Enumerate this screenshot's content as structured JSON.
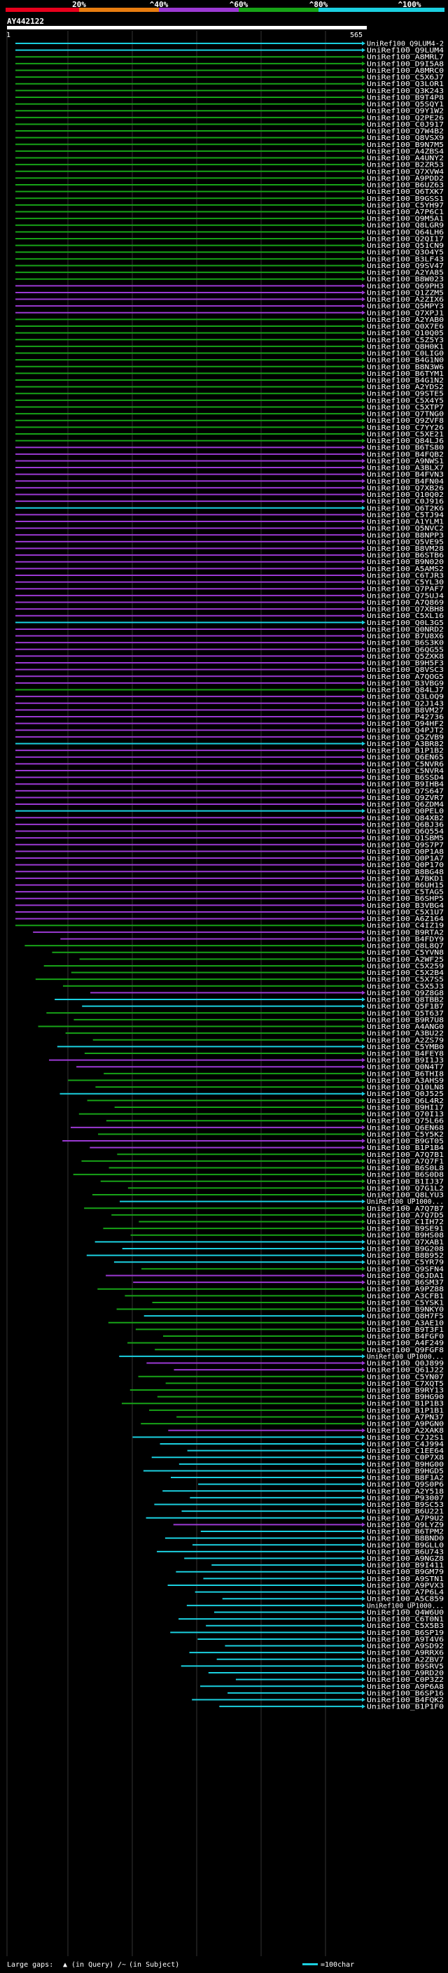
{
  "query_id": "AY442122",
  "ruler": {
    "start": "1",
    "end": "565"
  },
  "color_scale": {
    "labels": [
      "20%",
      "^40%",
      "^60%",
      "^80%",
      "^100%"
    ],
    "colors": [
      "#e8001c",
      "#e87d10",
      "#9b39d3",
      "#17a317",
      "#1bd0e0"
    ]
  },
  "footer": {
    "large_gaps": "Large gaps:",
    "in_query_mark": "▲",
    "in_query": "(in Query)",
    "in_subject_mark": "/~",
    "in_subject": "(in Subject)",
    "scale_text": "=100char"
  },
  "hits": [
    {
      "id": "UniRef100_Q9LUM4-2",
      "color": "#1bd0e0"
    },
    {
      "id": "UniRef100_Q9LUM4",
      "color": "#1bd0e0"
    },
    {
      "id": "UniRef100_A8MRL7",
      "color": "#17a317"
    },
    {
      "id": "UniRef100_D9I5A8",
      "color": "#17a317"
    },
    {
      "id": "UniRef100_A8MRC0",
      "color": "#17a317"
    },
    {
      "id": "UniRef100_C5X6J7",
      "color": "#17a317"
    },
    {
      "id": "UniRef100_Q3LOR1",
      "color": "#17a317"
    },
    {
      "id": "UniRef100_Q3K243",
      "color": "#17a317"
    },
    {
      "id": "UniRef100_B9T4P8",
      "color": "#17a317"
    },
    {
      "id": "UniRef100_Q5SQY1",
      "color": "#17a317"
    },
    {
      "id": "UniRef100_Q9Y1W2",
      "color": "#17a317"
    },
    {
      "id": "UniRef100_Q2PE26",
      "color": "#17a317"
    },
    {
      "id": "UniRef100_C0J917",
      "color": "#17a317"
    },
    {
      "id": "UniRef100_Q7W4B2",
      "color": "#17a317"
    },
    {
      "id": "UniRef100_Q8VSX9",
      "color": "#17a317"
    },
    {
      "id": "UniRef100_B9N7M5",
      "color": "#17a317"
    },
    {
      "id": "UniRef100_A4ZBS4",
      "color": "#17a317"
    },
    {
      "id": "UniRef100_A4UNY2",
      "color": "#17a317"
    },
    {
      "id": "UniRef100_B2ZR53",
      "color": "#17a317"
    },
    {
      "id": "UniRef100_Q7XVW4",
      "color": "#17a317"
    },
    {
      "id": "UniRef100_A9PDD2",
      "color": "#17a317"
    },
    {
      "id": "UniRef100_B6UZ63",
      "color": "#17a317"
    },
    {
      "id": "UniRef100_Q6TXK7",
      "color": "#17a317"
    },
    {
      "id": "UniRef100_B9GSS1",
      "color": "#17a317"
    },
    {
      "id": "UniRef100_C5YH97",
      "color": "#17a317"
    },
    {
      "id": "UniRef100_A7P6C1",
      "color": "#17a317"
    },
    {
      "id": "UniRef100_Q9M5A1",
      "color": "#17a317"
    },
    {
      "id": "UniRef100_Q8LGR9",
      "color": "#17a317"
    },
    {
      "id": "UniRef100_Q64LH6",
      "color": "#17a317"
    },
    {
      "id": "UniRef100_Q2QI17",
      "color": "#17a317"
    },
    {
      "id": "UniRef100_Q51CN9",
      "color": "#17a317"
    },
    {
      "id": "UniRef100_Q3O4Y5",
      "color": "#17a317"
    },
    {
      "id": "UniRef100_B3LF43",
      "color": "#17a317"
    },
    {
      "id": "UniRef100_Q9SV47",
      "color": "#17a317"
    },
    {
      "id": "UniRef100_A2YA85",
      "color": "#17a317"
    },
    {
      "id": "UniRef100_B8W023",
      "color": "#17a317"
    },
    {
      "id": "UniRef100_Q69PH3",
      "color": "#9b39d3"
    },
    {
      "id": "UniRef100_Q1ZZM5",
      "color": "#9b39d3"
    },
    {
      "id": "UniRef100_A2ZIX6",
      "color": "#9b39d3"
    },
    {
      "id": "UniRef100_Q5MPY3",
      "color": "#9b39d3"
    },
    {
      "id": "UniRef100_Q7XPJ1",
      "color": "#9b39d3"
    },
    {
      "id": "UniRef100_A2YAB0",
      "color": "#17a317"
    },
    {
      "id": "UniRef100_Q0X7E6",
      "color": "#17a317"
    },
    {
      "id": "UniRef100_Q10Q05",
      "color": "#17a317"
    },
    {
      "id": "UniRef100_C5Z5Y3",
      "color": "#17a317"
    },
    {
      "id": "UniRef100_Q8H0K1",
      "color": "#17a317"
    },
    {
      "id": "UniRef100_C0LIG0",
      "color": "#17a317"
    },
    {
      "id": "UniRef100_B4G1N0",
      "color": "#17a317"
    },
    {
      "id": "UniRef100_B8N3W6",
      "color": "#17a317"
    },
    {
      "id": "UniRef100_B6TYM1",
      "color": "#17a317"
    },
    {
      "id": "UniRef100_B4G1N2",
      "color": "#17a317"
    },
    {
      "id": "UniRef100_A2YDS2",
      "color": "#17a317"
    },
    {
      "id": "UniRef100_Q9STE5",
      "color": "#17a317"
    },
    {
      "id": "UniRef100_C5X4Y5",
      "color": "#17a317"
    },
    {
      "id": "UniRef100_C5XTP7",
      "color": "#17a317"
    },
    {
      "id": "UniRef100_Q7TNG0",
      "color": "#17a317"
    },
    {
      "id": "UniRef100_Q9ZVF8",
      "color": "#17a317"
    },
    {
      "id": "UniRef100_C7YY26",
      "color": "#17a317"
    },
    {
      "id": "UniRef100_C5XE21",
      "color": "#17a317"
    },
    {
      "id": "UniRef100_Q84LJ6",
      "color": "#17a317"
    },
    {
      "id": "UniRef100_B6TS80",
      "color": "#9b39d3"
    },
    {
      "id": "UniRef100_B4FQB2",
      "color": "#9b39d3"
    },
    {
      "id": "UniRef100_A9NWS1",
      "color": "#9b39d3"
    },
    {
      "id": "UniRef100_A3BLX7",
      "color": "#9b39d3"
    },
    {
      "id": "UniRef100_B4FVN3",
      "color": "#9b39d3"
    },
    {
      "id": "UniRef100_B4FN04",
      "color": "#9b39d3"
    },
    {
      "id": "UniRef100_Q7XB26",
      "color": "#9b39d3"
    },
    {
      "id": "UniRef100_Q10Q02",
      "color": "#9b39d3"
    },
    {
      "id": "UniRef100_C0J916",
      "color": "#9b39d3"
    },
    {
      "id": "UniRef100_Q6T2K6",
      "color": "#1bd0e0"
    },
    {
      "id": "UniRef100_C5TJ94",
      "color": "#9b39d3"
    },
    {
      "id": "UniRef100_A1YLM1",
      "color": "#9b39d3"
    },
    {
      "id": "UniRef100_Q5NVC2",
      "color": "#9b39d3"
    },
    {
      "id": "UniRef100_B8NPP3",
      "color": "#9b39d3"
    },
    {
      "id": "UniRef100_Q5VE95",
      "color": "#9b39d3"
    },
    {
      "id": "UniRef100_B8VM28",
      "color": "#9b39d3"
    },
    {
      "id": "UniRef100_B6STB6",
      "color": "#9b39d3"
    },
    {
      "id": "UniRef100_B9N020",
      "color": "#9b39d3"
    },
    {
      "id": "UniRef100_A5AMS2",
      "color": "#9b39d3"
    },
    {
      "id": "UniRef100_C6TJR3",
      "color": "#9b39d3"
    },
    {
      "id": "UniRef100_C5YL30",
      "color": "#9b39d3"
    },
    {
      "id": "UniRef100_Q7PAF7",
      "color": "#9b39d3"
    },
    {
      "id": "UniRef100_Q75UJ4",
      "color": "#9b39d3"
    },
    {
      "id": "UniRef100_A7Q869",
      "color": "#9b39d3"
    },
    {
      "id": "UniRef100_Q7XBH8",
      "color": "#9b39d3"
    },
    {
      "id": "UniRef100_C5XL16",
      "color": "#9b39d3"
    },
    {
      "id": "UniRef100_Q0L3G5",
      "color": "#1bd0e0"
    },
    {
      "id": "UniRef100_Q0NRD2",
      "color": "#9b39d3"
    },
    {
      "id": "UniRef100_B7U8X6",
      "color": "#9b39d3"
    },
    {
      "id": "UniRef100_B6S3K0",
      "color": "#9b39d3"
    },
    {
      "id": "UniRef100_Q6QG55",
      "color": "#9b39d3"
    },
    {
      "id": "UniRef100_Q5ZXK8",
      "color": "#9b39d3"
    },
    {
      "id": "UniRef100_B9H5F3",
      "color": "#9b39d3"
    },
    {
      "id": "UniRef100_Q8VSC3",
      "color": "#9b39d3"
    },
    {
      "id": "UniRef100_A7QOG5",
      "color": "#9b39d3"
    },
    {
      "id": "UniRef100_B3VBG9",
      "color": "#9b39d3"
    },
    {
      "id": "UniRef100_Q84LJ7",
      "color": "#17a317"
    },
    {
      "id": "UniRef100_Q3LOQ9",
      "color": "#9b39d3"
    },
    {
      "id": "UniRef100_Q2J143",
      "color": "#9b39d3"
    },
    {
      "id": "UniRef100_B8VM27",
      "color": "#9b39d3"
    },
    {
      "id": "UniRef100_P42736",
      "color": "#9b39d3"
    },
    {
      "id": "UniRef100_Q94HF2",
      "color": "#9b39d3"
    },
    {
      "id": "UniRef100_Q4PJT2",
      "color": "#9b39d3"
    },
    {
      "id": "UniRef100_Q5ZVB9",
      "color": "#9b39d3"
    },
    {
      "id": "UniRef100_A3BR82",
      "color": "#1bd0e0"
    },
    {
      "id": "UniRef100_B1P1B2",
      "color": "#9b39d3"
    },
    {
      "id": "UniRef100_Q6EN65",
      "color": "#9b39d3"
    },
    {
      "id": "UniRef100_C5NVR6",
      "color": "#9b39d3"
    },
    {
      "id": "UniRef100_C5NVR4",
      "color": "#9b39d3"
    },
    {
      "id": "UniRef100_B6SSD4",
      "color": "#9b39d3"
    },
    {
      "id": "UniRef100_B9IHB4",
      "color": "#9b39d3"
    },
    {
      "id": "UniRef100_Q7S647",
      "color": "#9b39d3"
    },
    {
      "id": "UniRef100_Q9ZVR7",
      "color": "#9b39d3"
    },
    {
      "id": "UniRef100_Q6ZDM4",
      "color": "#9b39d3"
    },
    {
      "id": "UniRef100_Q0PEL0",
      "color": "#1bd0e0"
    },
    {
      "id": "UniRef100_Q84XB2",
      "color": "#9b39d3"
    },
    {
      "id": "UniRef100_Q6BJ36",
      "color": "#9b39d3"
    },
    {
      "id": "UniRef100_Q6Q554",
      "color": "#9b39d3"
    },
    {
      "id": "UniRef100_Q1SBM5",
      "color": "#9b39d3"
    },
    {
      "id": "UniRef100_Q9S7P7",
      "color": "#9b39d3"
    },
    {
      "id": "UniRef100_Q0P1A8",
      "color": "#9b39d3"
    },
    {
      "id": "UniRef100_Q0P1A7",
      "color": "#9b39d3"
    },
    {
      "id": "UniRef100_Q0P170",
      "color": "#9b39d3"
    },
    {
      "id": "UniRef100_B8BG48",
      "color": "#9b39d3"
    },
    {
      "id": "UniRef100_A7BKD1",
      "color": "#9b39d3"
    },
    {
      "id": "UniRef100_B6UH15",
      "color": "#9b39d3"
    },
    {
      "id": "UniRef100_C5TAG5",
      "color": "#9b39d3"
    },
    {
      "id": "UniRef100_B6SHP5",
      "color": "#9b39d3"
    },
    {
      "id": "UniRef100_B3VBG4",
      "color": "#9b39d3"
    },
    {
      "id": "UniRef100_C5X1U7",
      "color": "#9b39d3"
    },
    {
      "id": "UniRef100_A6Z164",
      "color": "#9b39d3"
    },
    {
      "id": "UniRef100_C4IZ19",
      "color": "#17a317"
    },
    {
      "id": "UniRef100_B9RTA2",
      "color": "#9b39d3"
    },
    {
      "id": "UniRef100_B4FDY9",
      "color": "#9b39d3"
    },
    {
      "id": "UniRef100_Q8L8Q7",
      "color": "#17a317"
    },
    {
      "id": "UniRef100_C5YVN8",
      "color": "#17a317"
    },
    {
      "id": "UniRef100_A2WF25",
      "color": "#17a317"
    },
    {
      "id": "UniRef100_C5X259",
      "color": "#17a317"
    },
    {
      "id": "UniRef100_C5X2B4",
      "color": "#17a317"
    },
    {
      "id": "UniRef100_C5X7S5",
      "color": "#17a317"
    },
    {
      "id": "UniRef100_C5X5J3",
      "color": "#17a317"
    },
    {
      "id": "UniRef100_Q9Z8G8",
      "color": "#9b39d3"
    },
    {
      "id": "UniRef100_Q8TBB2",
      "color": "#1bd0e0"
    },
    {
      "id": "UniRef100_Q5F1B7",
      "color": "#1bd0e0"
    },
    {
      "id": "UniRef100_Q5T637",
      "color": "#17a317"
    },
    {
      "id": "UniRef100_B9R7U8",
      "color": "#17a317"
    },
    {
      "id": "UniRef100_A4ANG0",
      "color": "#17a317"
    },
    {
      "id": "UniRef100_A3BU22",
      "color": "#17a317"
    },
    {
      "id": "UniRef100_A2ZS79",
      "color": "#17a317"
    },
    {
      "id": "UniRef100_C5YMB0",
      "color": "#1bd0e0"
    },
    {
      "id": "UniRef100_B4FEY8",
      "color": "#17a317"
    },
    {
      "id": "UniRef100_B9I1J3",
      "color": "#9b39d3"
    },
    {
      "id": "UniRef100_Q0N4T7",
      "color": "#9b39d3"
    },
    {
      "id": "UniRef100_B6THI8",
      "color": "#17a317"
    },
    {
      "id": "UniRef100_A3AHS9",
      "color": "#17a317"
    },
    {
      "id": "UniRef100_Q10LN8",
      "color": "#17a317"
    },
    {
      "id": "UniRef100_Q0J525",
      "color": "#1bd0e0"
    },
    {
      "id": "UniRef100_Q6L4R2",
      "color": "#17a317"
    },
    {
      "id": "UniRef100_B9HI17",
      "color": "#17a317"
    },
    {
      "id": "UniRef100_Q70I13",
      "color": "#17a317"
    },
    {
      "id": "UniRef100_Q75L66",
      "color": "#17a317"
    },
    {
      "id": "UniRef100_Q6EN68",
      "color": "#9b39d3"
    },
    {
      "id": "UniRef100_C5Y5K2",
      "color": "#17a317"
    },
    {
      "id": "UniRef100_B9GT05",
      "color": "#9b39d3"
    },
    {
      "id": "UniRef100_B1P1B4",
      "color": "#9b39d3"
    },
    {
      "id": "UniRef100_A7Q7B1",
      "color": "#17a317"
    },
    {
      "id": "UniRef100_A7Q7F1",
      "color": "#17a317"
    },
    {
      "id": "UniRef100_B6S0L8",
      "color": "#17a317"
    },
    {
      "id": "UniRef100_B6S0D8",
      "color": "#17a317"
    },
    {
      "id": "UniRef100_B1IJ37",
      "color": "#17a317"
    },
    {
      "id": "UniRef100_Q7G1L2",
      "color": "#17a317"
    },
    {
      "id": "UniRef100_Q8LYU3",
      "color": "#17a317"
    },
    {
      "id": "UniRef100_UP1000...",
      "color": "#1bd0e0"
    },
    {
      "id": "UniRef100_A7Q7B7",
      "color": "#17a317"
    },
    {
      "id": "UniRef100_A7Q7D5",
      "color": "#17a317"
    },
    {
      "id": "UniRef100_C1IH72",
      "color": "#17a317"
    },
    {
      "id": "UniRef100_B9SE91",
      "color": "#17a317"
    },
    {
      "id": "UniRef100_B9HS08",
      "color": "#17a317"
    },
    {
      "id": "UniRef100_Q7XAB1",
      "color": "#1bd0e0"
    },
    {
      "id": "UniRef100_B9G208",
      "color": "#1bd0e0"
    },
    {
      "id": "UniRef100_B8B952",
      "color": "#1bd0e0"
    },
    {
      "id": "UniRef100_C5YR79",
      "color": "#1bd0e0"
    },
    {
      "id": "UniRef100_Q9SFN4",
      "color": "#17a317"
    },
    {
      "id": "UniRef100_Q6JDA1",
      "color": "#9b39d3"
    },
    {
      "id": "UniRef100_B6SM37",
      "color": "#9b39d3"
    },
    {
      "id": "UniRef100_A9PZ88",
      "color": "#17a317"
    },
    {
      "id": "UniRef100_A3CFB1",
      "color": "#17a317"
    },
    {
      "id": "UniRef100_C5YSK1",
      "color": "#17a317"
    },
    {
      "id": "UniRef100_B9NKY0",
      "color": "#17a317"
    },
    {
      "id": "UniRef100_Q8H7F5",
      "color": "#1bd0e0"
    },
    {
      "id": "UniRef100_A3AE10",
      "color": "#17a317"
    },
    {
      "id": "UniRef100_B9T3F1",
      "color": "#17a317"
    },
    {
      "id": "UniRef100_B4FGF0",
      "color": "#17a317"
    },
    {
      "id": "UniRef100_A4F249",
      "color": "#17a317"
    },
    {
      "id": "UniRef100_Q9FGF8",
      "color": "#17a317"
    },
    {
      "id": "UniRef100_UP1000...",
      "color": "#1bd0e0"
    },
    {
      "id": "UniRef100_Q0J899",
      "color": "#9b39d3"
    },
    {
      "id": "UniRef100_Q61J22",
      "color": "#9b39d3"
    },
    {
      "id": "UniRef100_C5YN07",
      "color": "#17a317"
    },
    {
      "id": "UniRef100_C7XQT5",
      "color": "#17a317"
    },
    {
      "id": "UniRef100_B9RY13",
      "color": "#17a317"
    },
    {
      "id": "UniRef100_B9HG90",
      "color": "#17a317"
    },
    {
      "id": "UniRef100_B1P1B3",
      "color": "#17a317"
    },
    {
      "id": "UniRef100_B1P1B1",
      "color": "#17a317"
    },
    {
      "id": "UniRef100_A7PN37",
      "color": "#17a317"
    },
    {
      "id": "UniRef100_A9PGN0",
      "color": "#17a317"
    },
    {
      "id": "UniRef100_A2XAK8",
      "color": "#9b39d3"
    },
    {
      "id": "UniRef100_C7J2S1",
      "color": "#1bd0e0"
    },
    {
      "id": "UniRef100_C4J994",
      "color": "#1bd0e0"
    },
    {
      "id": "UniRef100_C1EE64",
      "color": "#1bd0e0"
    },
    {
      "id": "UniRef100_C0P7X8",
      "color": "#1bd0e0"
    },
    {
      "id": "UniRef100_B9HG00",
      "color": "#1bd0e0"
    },
    {
      "id": "UniRef100_B9HGD5",
      "color": "#1bd0e0"
    },
    {
      "id": "UniRef100_B8F1A2",
      "color": "#1bd0e0"
    },
    {
      "id": "UniRef100_Q9S0P6",
      "color": "#1bd0e0"
    },
    {
      "id": "UniRef100_A2Y518",
      "color": "#1bd0e0"
    },
    {
      "id": "UniRef100_P93007",
      "color": "#1bd0e0"
    },
    {
      "id": "UniRef100_B9SC53",
      "color": "#1bd0e0"
    },
    {
      "id": "UniRef100_B6U221",
      "color": "#1bd0e0"
    },
    {
      "id": "UniRef100_A7P9U2",
      "color": "#1bd0e0"
    },
    {
      "id": "UniRef100_Q9LYZ9",
      "color": "#9b39d3"
    },
    {
      "id": "UniRef100_B6TPM2",
      "color": "#1bd0e0"
    },
    {
      "id": "UniRef100_B8BND0",
      "color": "#1bd0e0"
    },
    {
      "id": "UniRef100_B9GLL0",
      "color": "#1bd0e0"
    },
    {
      "id": "UniRef100_B6U743",
      "color": "#1bd0e0"
    },
    {
      "id": "UniRef100_A9NGZ8",
      "color": "#1bd0e0"
    },
    {
      "id": "UniRef100_B9I411",
      "color": "#1bd0e0"
    },
    {
      "id": "UniRef100_B9GM79",
      "color": "#1bd0e0"
    },
    {
      "id": "UniRef100_A9STN1",
      "color": "#1bd0e0"
    },
    {
      "id": "UniRef100_A9PVX3",
      "color": "#1bd0e0"
    },
    {
      "id": "UniRef100_A7P6L4",
      "color": "#1bd0e0"
    },
    {
      "id": "UniRef100_A5C859",
      "color": "#1bd0e0"
    },
    {
      "id": "UniRef100_UP1000...",
      "color": "#1bd0e0"
    },
    {
      "id": "UniRef100_Q4W6U0",
      "color": "#1bd0e0"
    },
    {
      "id": "UniRef100_C6T0N1",
      "color": "#1bd0e0"
    },
    {
      "id": "UniRef100_C5X5B3",
      "color": "#1bd0e0"
    },
    {
      "id": "UniRef100_B6SP19",
      "color": "#1bd0e0"
    },
    {
      "id": "UniRef100_A9T4V6",
      "color": "#1bd0e0"
    },
    {
      "id": "UniRef100_A9SD92",
      "color": "#1bd0e0"
    },
    {
      "id": "UniRef100_A9RRX6",
      "color": "#1bd0e0"
    },
    {
      "id": "UniRef100_A2ZBV7",
      "color": "#1bd0e0"
    },
    {
      "id": "UniRef100_B9SRV5",
      "color": "#1bd0e0"
    },
    {
      "id": "UniRef100_A9RD20",
      "color": "#1bd0e0"
    },
    {
      "id": "UniRef100_C0P3Z2",
      "color": "#1bd0e0"
    },
    {
      "id": "UniRef100_A9P6A8",
      "color": "#1bd0e0"
    },
    {
      "id": "UniRef100_B6SP16",
      "color": "#1bd0e0"
    },
    {
      "id": "UniRef100_B4FQK2",
      "color": "#1bd0e0"
    },
    {
      "id": "UniRef100_B1P1F0",
      "color": "#1bd0e0"
    }
  ]
}
